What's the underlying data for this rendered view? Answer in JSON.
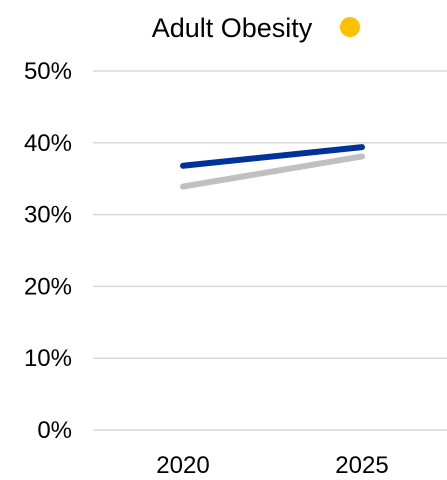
{
  "chart_data": {
    "type": "line",
    "title": "Adult Obesity",
    "title_marker_color": "#FFC000",
    "xlabel": "",
    "ylabel": "",
    "x": [
      "2020",
      "2025"
    ],
    "ylim": [
      0,
      50
    ],
    "yticks": [
      0,
      10,
      20,
      30,
      40,
      50
    ],
    "ytick_format": "%",
    "grid": true,
    "legend": "none",
    "series": [
      {
        "color": "#C0C0C0",
        "values": [
          33.9,
          38.1
        ]
      },
      {
        "color": "#003399",
        "values": [
          36.8,
          39.4
        ]
      }
    ]
  }
}
